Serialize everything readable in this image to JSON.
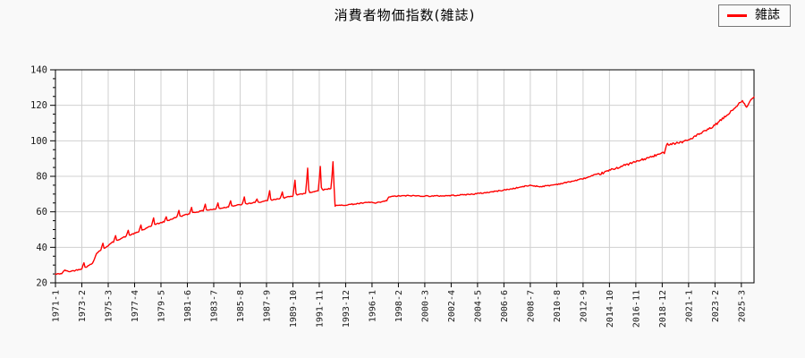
{
  "title": "消費者物価指数(雑誌)",
  "legend": {
    "label": "雑誌"
  },
  "colors": {
    "page_bg": "#f9f9f9",
    "plot_bg": "#ffffff",
    "grid": "#d0d0d0",
    "border": "#000000",
    "line": "#ff0000",
    "legend_border": "#777777",
    "tick_text": "#1a1a1a"
  },
  "chart_data": {
    "type": "line",
    "title": "消費者物価指数(雑誌)",
    "series_name": "雑誌",
    "x_unit": "year-month",
    "x_start": "1971-1",
    "x_end": "2026-3",
    "x_tick_interval_months": 25,
    "x_tick_labels": [
      "1971-1",
      "1973-2",
      "1975-3",
      "1977-4",
      "1979-5",
      "1981-6",
      "1983-7",
      "1985-8",
      "1987-9",
      "1989-10",
      "1991-11",
      "1993-12",
      "1996-1",
      "1998-2",
      "2000-3",
      "2002-4",
      "2004-5",
      "2006-6",
      "2008-7",
      "2010-8",
      "2012-9",
      "2014-10",
      "2016-11",
      "2018-12",
      "2021-1",
      "2023-2",
      "2025-3"
    ],
    "y_ticks": [
      20,
      40,
      60,
      80,
      100,
      120,
      140
    ],
    "y_minor_step": 5,
    "ylim": [
      20,
      140
    ],
    "grid": true,
    "legend_position": "top-right-outside",
    "baseline_anchors": [
      [
        "1971-1",
        24.8
      ],
      [
        "1971-7",
        25.3
      ],
      [
        "1971-10",
        27.2
      ],
      [
        "1972-1",
        26.3
      ],
      [
        "1972-7",
        26.9
      ],
      [
        "1973-1",
        27.8
      ],
      [
        "1973-8",
        29.5
      ],
      [
        "1973-12",
        31.0
      ],
      [
        "1974-4",
        36.5
      ],
      [
        "1974-7",
        38.2
      ],
      [
        "1974-12",
        39.8
      ],
      [
        "1975-7",
        42.8
      ],
      [
        "1975-12",
        44.2
      ],
      [
        "1976-7",
        46.0
      ],
      [
        "1976-12",
        47.0
      ],
      [
        "1977-7",
        48.5
      ],
      [
        "1977-12",
        49.8
      ],
      [
        "1978-7",
        51.8
      ],
      [
        "1978-12",
        53.0
      ],
      [
        "1979-7",
        54.2
      ],
      [
        "1979-12",
        55.2
      ],
      [
        "1980-7",
        56.8
      ],
      [
        "1980-12",
        57.6
      ],
      [
        "1981-7",
        58.7
      ],
      [
        "1981-12",
        59.6
      ],
      [
        "1982-7",
        60.4
      ],
      [
        "1982-12",
        60.9
      ],
      [
        "1983-7",
        61.4
      ],
      [
        "1983-12",
        61.9
      ],
      [
        "1984-7",
        62.6
      ],
      [
        "1984-12",
        63.2
      ],
      [
        "1985-7",
        63.9
      ],
      [
        "1985-12",
        64.4
      ],
      [
        "1986-7",
        64.9
      ],
      [
        "1986-12",
        65.4
      ],
      [
        "1987-7",
        65.9
      ],
      [
        "1987-12",
        66.4
      ],
      [
        "1988-7",
        67.1
      ],
      [
        "1988-12",
        67.7
      ],
      [
        "1989-7",
        68.5
      ],
      [
        "1989-12",
        69.3
      ],
      [
        "1990-7",
        70.1
      ],
      [
        "1990-12",
        70.7
      ],
      [
        "1991-7",
        71.5
      ],
      [
        "1991-12",
        72.1
      ],
      [
        "1992-7",
        72.9
      ],
      [
        "1992-11",
        73.3
      ],
      [
        "1993-1",
        71.8
      ],
      [
        "1993-2",
        63.4
      ],
      [
        "1993-7",
        63.6
      ],
      [
        "1994-7",
        64.3
      ],
      [
        "1995-7",
        65.1
      ],
      [
        "1995-12",
        65.4
      ],
      [
        "1996-4",
        64.8
      ],
      [
        "1996-12",
        65.8
      ],
      [
        "1997-3",
        66.3
      ],
      [
        "1997-5",
        68.4
      ],
      [
        "1998-1",
        68.9
      ],
      [
        "1999-1",
        69.1
      ],
      [
        "2000-1",
        68.9
      ],
      [
        "2001-1",
        68.9
      ],
      [
        "2002-1",
        69.1
      ],
      [
        "2003-1",
        69.5
      ],
      [
        "2004-1",
        70.0
      ],
      [
        "2005-1",
        70.8
      ],
      [
        "2006-1",
        71.8
      ],
      [
        "2007-1",
        72.9
      ],
      [
        "2008-1",
        74.3
      ],
      [
        "2008-7",
        74.9
      ],
      [
        "2009-4",
        74.2
      ],
      [
        "2010-1",
        74.8
      ],
      [
        "2011-1",
        76.0
      ],
      [
        "2012-1",
        77.5
      ],
      [
        "2013-1",
        79.3
      ],
      [
        "2014-1",
        81.3
      ],
      [
        "2015-1",
        84.0
      ],
      [
        "2016-1",
        86.3
      ],
      [
        "2017-1",
        88.6
      ],
      [
        "2018-1",
        90.8
      ],
      [
        "2018-12",
        93.0
      ],
      [
        "2019-2",
        93.4
      ],
      [
        "2019-4",
        98.0
      ],
      [
        "2019-12",
        98.6
      ],
      [
        "2020-7",
        99.4
      ],
      [
        "2021-1",
        100.5
      ],
      [
        "2021-7",
        102.5
      ],
      [
        "2022-1",
        104.3
      ],
      [
        "2022-7",
        106.2
      ],
      [
        "2023-1",
        108.3
      ],
      [
        "2023-7",
        111.3
      ],
      [
        "2024-1",
        114.2
      ],
      [
        "2024-7",
        117.5
      ],
      [
        "2025-1",
        121.0
      ],
      [
        "2025-4",
        122.2
      ],
      [
        "2025-8",
        118.8
      ],
      [
        "2025-12",
        123.0
      ],
      [
        "2026-3",
        125.3
      ]
    ],
    "spikes": [
      [
        "1973-4",
        31.3
      ],
      [
        "1974-10",
        42.3
      ],
      [
        "1975-10",
        46.6
      ],
      [
        "1976-10",
        49.6
      ],
      [
        "1977-10",
        52.6
      ],
      [
        "1978-10",
        56.6
      ],
      [
        "1979-10",
        57.2
      ],
      [
        "1980-10",
        60.8
      ],
      [
        "1981-10",
        62.5
      ],
      [
        "1982-11",
        64.3
      ],
      [
        "1983-11",
        65.0
      ],
      [
        "1984-11",
        66.2
      ],
      [
        "1985-12",
        68.4
      ],
      [
        "1986-12",
        67.2
      ],
      [
        "1987-12",
        71.9
      ],
      [
        "1988-12",
        71.2
      ],
      [
        "1989-12",
        77.8
      ],
      [
        "1990-12",
        84.6
      ],
      [
        "1991-12",
        85.6
      ],
      [
        "1992-12",
        88.2
      ]
    ],
    "noise_amplitude_early": 0.3,
    "noise_amplitude_late": 0.6
  }
}
